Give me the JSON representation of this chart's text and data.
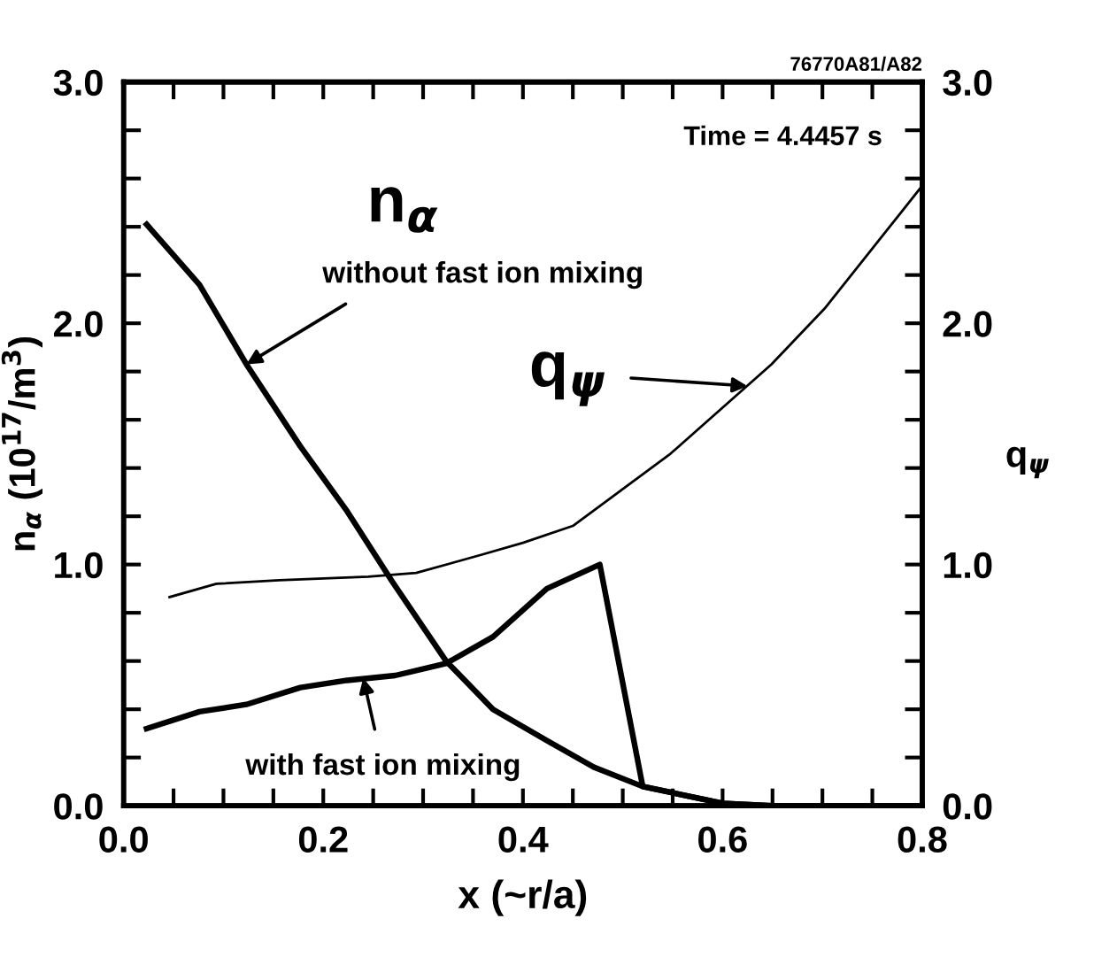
{
  "chart_data": {
    "type": "line",
    "xlabel": "x (~r/a)",
    "ylabel": "n$_{α}$ (10$^{17}$/m$^{3}$)",
    "y2label": "q$_{ψ}$",
    "xlim": [
      0,
      0.8
    ],
    "ylim": [
      0,
      3
    ],
    "y2lim": [
      0,
      3
    ],
    "xticks": [
      {
        "value": 0,
        "label": "0.0"
      },
      {
        "value": 0.05,
        "label": null
      },
      {
        "value": 0.1,
        "label": null
      },
      {
        "value": 0.15,
        "label": null
      },
      {
        "value": 0.2,
        "label": "0.2"
      },
      {
        "value": 0.25,
        "label": null
      },
      {
        "value": 0.3,
        "label": null
      },
      {
        "value": 0.35,
        "label": null
      },
      {
        "value": 0.4,
        "label": "0.4"
      },
      {
        "value": 0.45,
        "label": null
      },
      {
        "value": 0.5,
        "label": null
      },
      {
        "value": 0.55,
        "label": null
      },
      {
        "value": 0.6,
        "label": "0.6"
      },
      {
        "value": 0.65,
        "label": null
      },
      {
        "value": 0.7,
        "label": null
      },
      {
        "value": 0.75,
        "label": null
      },
      {
        "value": 0.8,
        "label": "0.8"
      }
    ],
    "yticks": [
      {
        "value": 0,
        "label": "0.0"
      },
      {
        "value": 0.2,
        "label": null
      },
      {
        "value": 0.4,
        "label": null
      },
      {
        "value": 0.6,
        "label": null
      },
      {
        "value": 0.8,
        "label": null
      },
      {
        "value": 1,
        "label": "1.0"
      },
      {
        "value": 1.2,
        "label": null
      },
      {
        "value": 1.4,
        "label": null
      },
      {
        "value": 1.6,
        "label": null
      },
      {
        "value": 1.8,
        "label": null
      },
      {
        "value": 2,
        "label": "2.0"
      },
      {
        "value": 2.2,
        "label": null
      },
      {
        "value": 2.4,
        "label": null
      },
      {
        "value": 2.6,
        "label": null
      },
      {
        "value": 2.8,
        "label": null
      },
      {
        "value": 3,
        "label": "3.0"
      }
    ],
    "y2ticks": [
      {
        "value": 0,
        "label": "0.0"
      },
      {
        "value": 0.2,
        "label": null
      },
      {
        "value": 0.4,
        "label": null
      },
      {
        "value": 0.6,
        "label": null
      },
      {
        "value": 0.8,
        "label": null
      },
      {
        "value": 1,
        "label": "1.0"
      },
      {
        "value": 1.2,
        "label": null
      },
      {
        "value": 1.4,
        "label": null
      },
      {
        "value": 1.6,
        "label": null
      },
      {
        "value": 1.8,
        "label": null
      },
      {
        "value": 2,
        "label": "2.0"
      },
      {
        "value": 2.2,
        "label": null
      },
      {
        "value": 2.4,
        "label": null
      },
      {
        "value": 2.6,
        "label": null
      },
      {
        "value": 2.8,
        "label": null
      },
      {
        "value": 3,
        "label": "3.0"
      }
    ],
    "series": [
      {
        "color": "#000000",
        "x": [
          0.023,
          0.076,
          0.123,
          0.177,
          0.224,
          0.269,
          0.323,
          0.37,
          0.424,
          0.471,
          0.52,
          0.6,
          0.65,
          0.8
        ],
        "values": [
          2.41,
          2.16,
          1.83,
          1.49,
          1.22,
          0.93,
          0.6,
          0.4,
          0.27,
          0.16,
          0.08,
          0.01,
          0,
          0
        ]
      },
      {
        "color": "#000000",
        "x": [
          0.023,
          0.076,
          0.123,
          0.177,
          0.224,
          0.272,
          0.323,
          0.37,
          0.424,
          0.477,
          0.52,
          0.6,
          0.65,
          0.8
        ],
        "values": [
          0.32,
          0.39,
          0.42,
          0.49,
          0.52,
          0.54,
          0.59,
          0.7,
          0.9,
          1.0,
          0.08,
          0.01,
          0,
          0
        ]
      },
      {
        "color": "#000000",
        "axis": "y2",
        "x": [
          0.046,
          0.093,
          0.156,
          0.245,
          0.293,
          0.358,
          0.4,
          0.45,
          0.548,
          0.649,
          0.702,
          0.8
        ],
        "values": [
          0.865,
          0.92,
          0.935,
          0.95,
          0.965,
          1.04,
          1.09,
          1.16,
          1.46,
          1.83,
          2.06,
          2.57
        ]
      }
    ],
    "annotations": [
      "76770A81/A82",
      "Time = 4.4457 s",
      "n$_{α}$",
      {
        "text": "without fast ion mixing",
        "x": 0.123,
        "y": 1.83
      },
      {
        "text": "with fast ion mixing",
        "x": 0.24,
        "y": 0.53
      },
      {
        "text": "q$_{ψ}$",
        "x": 0.625,
        "y": 1.74
      }
    ],
    "grid": false,
    "legend": false,
    "line_style": "solid",
    "marker": "none"
  }
}
